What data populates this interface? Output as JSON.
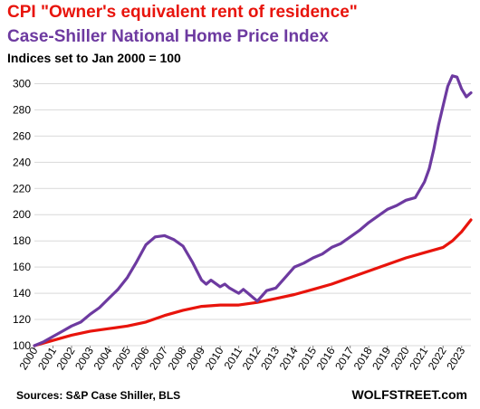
{
  "titles": {
    "line1": "CPI \"Owner's equivalent rent of residence\"",
    "line2": "Case-Shiller  National  Home Price Index",
    "line3": "Indices set to Jan 2000 = 100"
  },
  "footer": {
    "sources": "Sources: S&P Case Shiller, BLS",
    "brand": "WOLFSTREET.com"
  },
  "colors": {
    "title1": "#e8140c",
    "title2": "#6d3aa0",
    "cpi_line": "#e8140c",
    "caseshiller_line": "#6d3aa0",
    "grid": "#d9d9d9"
  },
  "chart_data": {
    "type": "line",
    "grid": true,
    "ylim": [
      100,
      310
    ],
    "xlim": [
      2000,
      2023.5
    ],
    "yticks": [
      100,
      120,
      140,
      160,
      180,
      200,
      220,
      240,
      260,
      280,
      300
    ],
    "xticks": [
      "2000",
      "2001",
      "2002",
      "2003",
      "2004",
      "2005",
      "2006",
      "2007",
      "2008",
      "2009",
      "2010",
      "2011",
      "2012",
      "2013",
      "2014",
      "2015",
      "2016",
      "2017",
      "2018",
      "2019",
      "2020",
      "2021",
      "2022",
      "2023"
    ],
    "series": [
      {
        "name": "CPI \"Owner's equivalent rent of residence\"",
        "color": "#e8140c",
        "x": [
          2000,
          2001,
          2002,
          2003,
          2004,
          2005,
          2006,
          2007,
          2008,
          2009,
          2010,
          2011,
          2012,
          2013,
          2014,
          2015,
          2016,
          2017,
          2018,
          2019,
          2020,
          2021,
          2022,
          2022.5,
          2023,
          2023.5
        ],
        "y": [
          100,
          104,
          108,
          111,
          113,
          115,
          118,
          123,
          127,
          130,
          131,
          131,
          133,
          136,
          139,
          143,
          147,
          152,
          157,
          162,
          167,
          171,
          175,
          180,
          187,
          196
        ]
      },
      {
        "name": "Case-Shiller  National  Home Price Index",
        "color": "#6d3aa0",
        "x": [
          2000,
          2000.5,
          2001,
          2001.5,
          2002,
          2002.5,
          2003,
          2003.5,
          2004,
          2004.5,
          2005,
          2005.5,
          2006,
          2006.5,
          2007,
          2007.5,
          2008,
          2008.5,
          2009,
          2009.25,
          2009.5,
          2010,
          2010.25,
          2010.5,
          2011,
          2011.25,
          2011.5,
          2012,
          2012.25,
          2012.5,
          2013,
          2013.5,
          2014,
          2014.5,
          2015,
          2015.5,
          2016,
          2016.5,
          2017,
          2017.5,
          2018,
          2018.5,
          2019,
          2019.5,
          2020,
          2020.5,
          2021,
          2021.25,
          2021.5,
          2021.75,
          2022,
          2022.25,
          2022.5,
          2022.75,
          2023,
          2023.25,
          2023.5
        ],
        "y": [
          100,
          103,
          107,
          111,
          115,
          118,
          124,
          129,
          136,
          143,
          152,
          164,
          177,
          183,
          184,
          181,
          176,
          164,
          150,
          147,
          150,
          145,
          147,
          144,
          140,
          143,
          140,
          134,
          138,
          142,
          144,
          152,
          160,
          163,
          167,
          170,
          175,
          178,
          183,
          188,
          194,
          199,
          204,
          207,
          211,
          213,
          225,
          235,
          250,
          268,
          283,
          298,
          306,
          305,
          296,
          290,
          293
        ]
      }
    ]
  }
}
